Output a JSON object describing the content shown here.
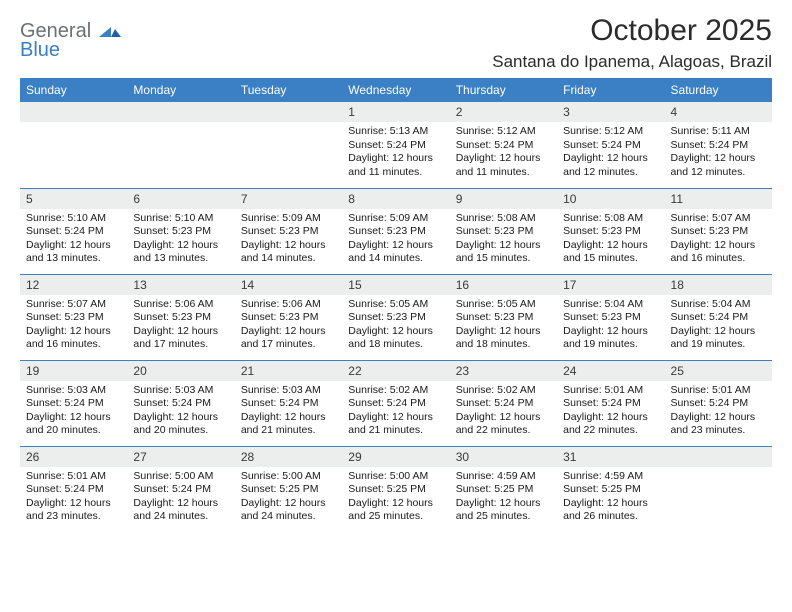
{
  "logo": {
    "line1": "General",
    "line2": "Blue"
  },
  "title": "October 2025",
  "location": "Santana do Ipanema, Alagoas, Brazil",
  "colors": {
    "header_bg": "#3b7fc4",
    "header_text": "#ffffff",
    "daynum_bg": "#eceded",
    "rule": "#3b7fc4",
    "logo_grey": "#6b7076",
    "logo_blue": "#3b7fc4"
  },
  "day_headers": [
    "Sunday",
    "Monday",
    "Tuesday",
    "Wednesday",
    "Thursday",
    "Friday",
    "Saturday"
  ],
  "weeks": [
    [
      {
        "n": "",
        "sr": "",
        "ss": "",
        "dl": ""
      },
      {
        "n": "",
        "sr": "",
        "ss": "",
        "dl": ""
      },
      {
        "n": "",
        "sr": "",
        "ss": "",
        "dl": ""
      },
      {
        "n": "1",
        "sr": "Sunrise: 5:13 AM",
        "ss": "Sunset: 5:24 PM",
        "dl": "Daylight: 12 hours and 11 minutes."
      },
      {
        "n": "2",
        "sr": "Sunrise: 5:12 AM",
        "ss": "Sunset: 5:24 PM",
        "dl": "Daylight: 12 hours and 11 minutes."
      },
      {
        "n": "3",
        "sr": "Sunrise: 5:12 AM",
        "ss": "Sunset: 5:24 PM",
        "dl": "Daylight: 12 hours and 12 minutes."
      },
      {
        "n": "4",
        "sr": "Sunrise: 5:11 AM",
        "ss": "Sunset: 5:24 PM",
        "dl": "Daylight: 12 hours and 12 minutes."
      }
    ],
    [
      {
        "n": "5",
        "sr": "Sunrise: 5:10 AM",
        "ss": "Sunset: 5:24 PM",
        "dl": "Daylight: 12 hours and 13 minutes."
      },
      {
        "n": "6",
        "sr": "Sunrise: 5:10 AM",
        "ss": "Sunset: 5:23 PM",
        "dl": "Daylight: 12 hours and 13 minutes."
      },
      {
        "n": "7",
        "sr": "Sunrise: 5:09 AM",
        "ss": "Sunset: 5:23 PM",
        "dl": "Daylight: 12 hours and 14 minutes."
      },
      {
        "n": "8",
        "sr": "Sunrise: 5:09 AM",
        "ss": "Sunset: 5:23 PM",
        "dl": "Daylight: 12 hours and 14 minutes."
      },
      {
        "n": "9",
        "sr": "Sunrise: 5:08 AM",
        "ss": "Sunset: 5:23 PM",
        "dl": "Daylight: 12 hours and 15 minutes."
      },
      {
        "n": "10",
        "sr": "Sunrise: 5:08 AM",
        "ss": "Sunset: 5:23 PM",
        "dl": "Daylight: 12 hours and 15 minutes."
      },
      {
        "n": "11",
        "sr": "Sunrise: 5:07 AM",
        "ss": "Sunset: 5:23 PM",
        "dl": "Daylight: 12 hours and 16 minutes."
      }
    ],
    [
      {
        "n": "12",
        "sr": "Sunrise: 5:07 AM",
        "ss": "Sunset: 5:23 PM",
        "dl": "Daylight: 12 hours and 16 minutes."
      },
      {
        "n": "13",
        "sr": "Sunrise: 5:06 AM",
        "ss": "Sunset: 5:23 PM",
        "dl": "Daylight: 12 hours and 17 minutes."
      },
      {
        "n": "14",
        "sr": "Sunrise: 5:06 AM",
        "ss": "Sunset: 5:23 PM",
        "dl": "Daylight: 12 hours and 17 minutes."
      },
      {
        "n": "15",
        "sr": "Sunrise: 5:05 AM",
        "ss": "Sunset: 5:23 PM",
        "dl": "Daylight: 12 hours and 18 minutes."
      },
      {
        "n": "16",
        "sr": "Sunrise: 5:05 AM",
        "ss": "Sunset: 5:23 PM",
        "dl": "Daylight: 12 hours and 18 minutes."
      },
      {
        "n": "17",
        "sr": "Sunrise: 5:04 AM",
        "ss": "Sunset: 5:23 PM",
        "dl": "Daylight: 12 hours and 19 minutes."
      },
      {
        "n": "18",
        "sr": "Sunrise: 5:04 AM",
        "ss": "Sunset: 5:24 PM",
        "dl": "Daylight: 12 hours and 19 minutes."
      }
    ],
    [
      {
        "n": "19",
        "sr": "Sunrise: 5:03 AM",
        "ss": "Sunset: 5:24 PM",
        "dl": "Daylight: 12 hours and 20 minutes."
      },
      {
        "n": "20",
        "sr": "Sunrise: 5:03 AM",
        "ss": "Sunset: 5:24 PM",
        "dl": "Daylight: 12 hours and 20 minutes."
      },
      {
        "n": "21",
        "sr": "Sunrise: 5:03 AM",
        "ss": "Sunset: 5:24 PM",
        "dl": "Daylight: 12 hours and 21 minutes."
      },
      {
        "n": "22",
        "sr": "Sunrise: 5:02 AM",
        "ss": "Sunset: 5:24 PM",
        "dl": "Daylight: 12 hours and 21 minutes."
      },
      {
        "n": "23",
        "sr": "Sunrise: 5:02 AM",
        "ss": "Sunset: 5:24 PM",
        "dl": "Daylight: 12 hours and 22 minutes."
      },
      {
        "n": "24",
        "sr": "Sunrise: 5:01 AM",
        "ss": "Sunset: 5:24 PM",
        "dl": "Daylight: 12 hours and 22 minutes."
      },
      {
        "n": "25",
        "sr": "Sunrise: 5:01 AM",
        "ss": "Sunset: 5:24 PM",
        "dl": "Daylight: 12 hours and 23 minutes."
      }
    ],
    [
      {
        "n": "26",
        "sr": "Sunrise: 5:01 AM",
        "ss": "Sunset: 5:24 PM",
        "dl": "Daylight: 12 hours and 23 minutes."
      },
      {
        "n": "27",
        "sr": "Sunrise: 5:00 AM",
        "ss": "Sunset: 5:24 PM",
        "dl": "Daylight: 12 hours and 24 minutes."
      },
      {
        "n": "28",
        "sr": "Sunrise: 5:00 AM",
        "ss": "Sunset: 5:25 PM",
        "dl": "Daylight: 12 hours and 24 minutes."
      },
      {
        "n": "29",
        "sr": "Sunrise: 5:00 AM",
        "ss": "Sunset: 5:25 PM",
        "dl": "Daylight: 12 hours and 25 minutes."
      },
      {
        "n": "30",
        "sr": "Sunrise: 4:59 AM",
        "ss": "Sunset: 5:25 PM",
        "dl": "Daylight: 12 hours and 25 minutes."
      },
      {
        "n": "31",
        "sr": "Sunrise: 4:59 AM",
        "ss": "Sunset: 5:25 PM",
        "dl": "Daylight: 12 hours and 26 minutes."
      },
      {
        "n": "",
        "sr": "",
        "ss": "",
        "dl": ""
      }
    ]
  ]
}
